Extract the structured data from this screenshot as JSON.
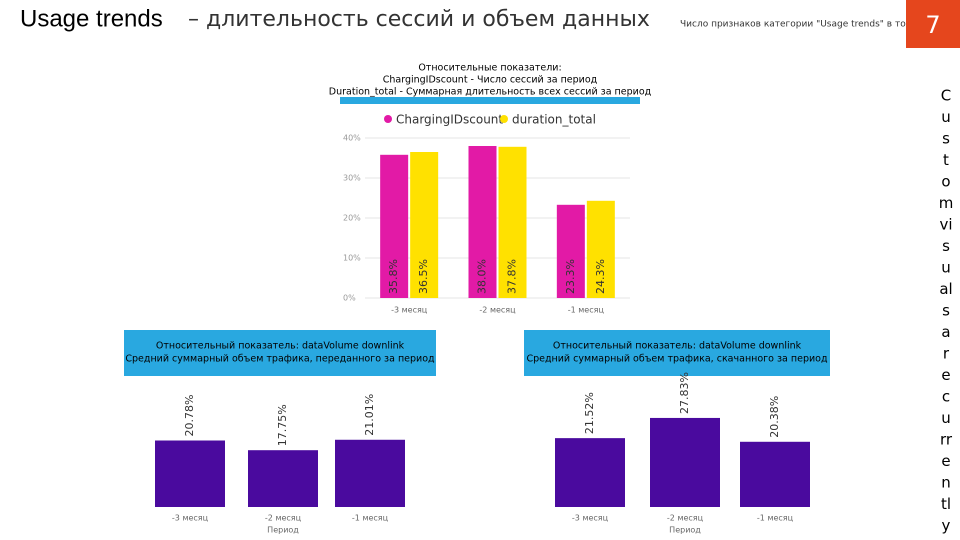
{
  "title_main": "Usage trends",
  "title_rest": "– длительность сессий и объем данных",
  "note": "Число признаков категории \"Usage trends\" в топе",
  "page_number": "7",
  "side_text": [
    "C",
    "u",
    "s",
    "t",
    "o",
    "m",
    "vi",
    "s",
    "u",
    "al",
    "s",
    "a",
    "r",
    "e",
    "c",
    "u",
    "rr",
    "e",
    "n",
    "tl",
    "y"
  ],
  "chart_data": [
    {
      "type": "bar",
      "title": [
        "Относительные показатели:",
        "ChargingIDscount - Число сессий за период",
        "Duration_total - Суммарная длительность всех сессий за период"
      ],
      "categories": [
        "-3 месяц",
        "-2 месяц",
        "-1 месяц"
      ],
      "series": [
        {
          "name": "ChargingIDscount",
          "color": "#e21aa6",
          "values": [
            35.8,
            38.0,
            23.3
          ],
          "value_labels": [
            "35.8%",
            "38.0%",
            "23.3%"
          ]
        },
        {
          "name": "duration_total",
          "color": "#ffe100",
          "values": [
            36.5,
            37.8,
            24.3
          ],
          "value_labels": [
            "36.5%",
            "37.8%",
            "24.3%"
          ]
        }
      ],
      "ylim": [
        0,
        40
      ],
      "yticks": [
        {
          "value": 0,
          "label": "0%"
        },
        {
          "value": 10,
          "label": "10%"
        },
        {
          "value": 20,
          "label": "20%"
        },
        {
          "value": 30,
          "label": "30%"
        },
        {
          "value": 40,
          "label": "40%"
        }
      ],
      "grid": true,
      "legend": "top"
    },
    {
      "type": "bar",
      "title": [
        "Относительный показатель: dataVolume downlink",
        "Средний суммарный объем трафика, переданного за период"
      ],
      "categories": [
        "-3 месяц",
        "-2 месяц",
        "-1 месяц"
      ],
      "x_label": "Период",
      "color": "#4a0a9e",
      "values": [
        20.78,
        17.75,
        21.01
      ],
      "value_labels": [
        "20.78%",
        "17.75%",
        "21.01%"
      ]
    },
    {
      "type": "bar",
      "title": [
        "Относительный показатель: dataVolume downlink",
        "Средний суммарный объем трафика, скачанного за период"
      ],
      "categories": [
        "-3 месяц",
        "-2 месяц",
        "-1 месяц"
      ],
      "x_label": "Период",
      "color": "#4a0a9e",
      "values": [
        21.52,
        27.83,
        20.38
      ],
      "value_labels": [
        "21.52%",
        "27.83%",
        "20.38%"
      ]
    }
  ]
}
